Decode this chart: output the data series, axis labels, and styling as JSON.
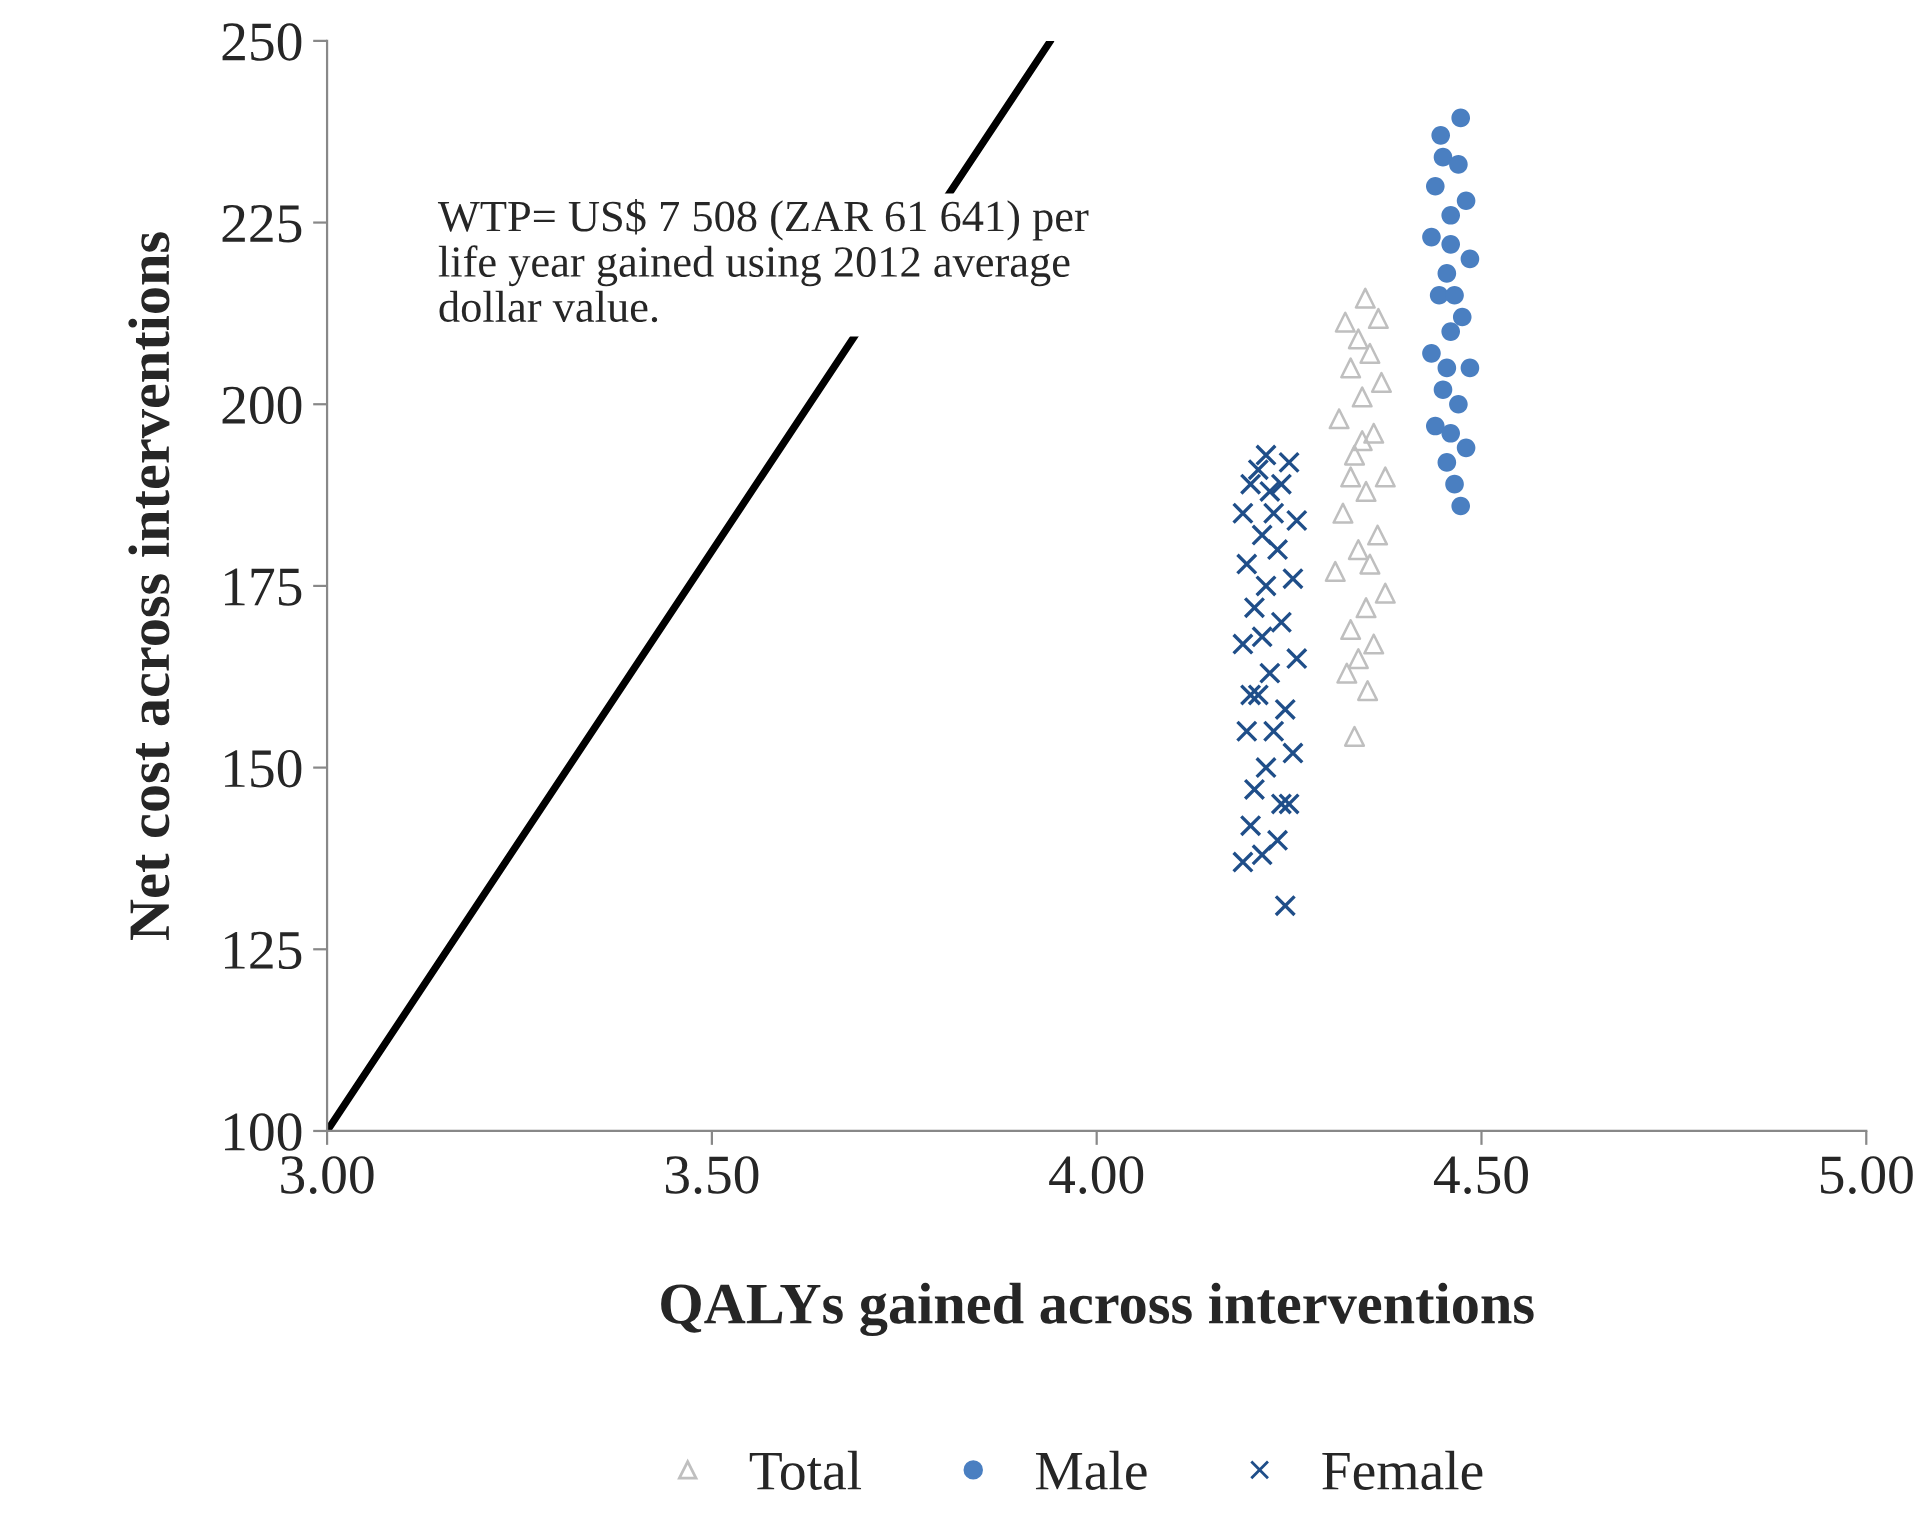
{
  "chart_data": {
    "type": "scatter",
    "xlabel": "QALYs gained across interventions",
    "ylabel": "Net cost across interventions",
    "annotations": [
      "WTP= US$ 7 508 (ZAR 61 641) per\nlife year gained using 2012 average\ndollar value."
    ],
    "xlim": [
      3.0,
      5.0
    ],
    "xticks": [
      {
        "value": 3.0,
        "label": "3.00"
      },
      {
        "value": 3.5,
        "label": "3.50"
      },
      {
        "value": 4.0,
        "label": "4.00"
      },
      {
        "value": 4.5,
        "label": "4.50"
      },
      {
        "value": 5.0,
        "label": "5.00"
      }
    ],
    "ylim": [
      100,
      250
    ],
    "yticks": [
      100,
      125,
      150,
      175,
      200,
      225,
      250
    ],
    "grid": false,
    "legend": "bottom",
    "series": [
      {
        "type": "line",
        "color": "#000000",
        "x": [
          3.0,
          3.94
        ],
        "values": [
          100,
          250
        ],
        "marker": "none",
        "line_style": "solid"
      },
      {
        "name": "Total",
        "color": "#bfbfbf",
        "marker": "triangle",
        "x": [
          4.349,
          4.323,
          4.366,
          4.34,
          4.355,
          4.33,
          4.37,
          4.345,
          4.315,
          4.36,
          4.335,
          4.375,
          4.35,
          4.32,
          4.365,
          4.34,
          4.31,
          4.375,
          4.35,
          4.33,
          4.36,
          4.34,
          4.325,
          4.352,
          4.335,
          4.345,
          4.355,
          4.33
        ],
        "values": [
          214.6,
          211.3,
          211.8,
          209,
          207,
          205,
          203,
          201,
          198,
          196,
          193,
          190,
          188,
          185,
          182,
          180,
          177,
          174,
          172,
          169,
          167,
          165,
          163,
          160.6,
          154.3,
          195,
          178,
          190
        ]
      },
      {
        "name": "Male",
        "color": "#4a7fc1",
        "marker": "circle",
        "x": [
          4.473,
          4.447,
          4.45,
          4.47,
          4.44,
          4.48,
          4.46,
          4.435,
          4.485,
          4.455,
          4.445,
          4.475,
          4.46,
          4.435,
          4.485,
          4.45,
          4.47,
          4.44,
          4.48,
          4.455,
          4.465,
          4.473,
          4.46,
          4.465,
          4.455,
          4.46
        ],
        "values": [
          239.4,
          237,
          234,
          233,
          230,
          228,
          226,
          223,
          220,
          218,
          215,
          212,
          210,
          207,
          205,
          202,
          200,
          197,
          194,
          192,
          189,
          186,
          222,
          215,
          205,
          196
        ]
      },
      {
        "name": "Female",
        "color": "#1f4e89",
        "marker": "cross",
        "x": [
          4.25,
          4.21,
          4.2,
          4.24,
          4.225,
          4.19,
          4.26,
          4.215,
          4.235,
          4.195,
          4.255,
          4.22,
          4.205,
          4.24,
          4.19,
          4.26,
          4.225,
          4.21,
          4.245,
          4.195,
          4.255,
          4.22,
          4.205,
          4.24,
          4.2,
          4.235,
          4.215,
          4.19,
          4.245,
          4.23,
          4.23,
          4.215,
          4.2,
          4.25,
          4.22
        ],
        "values": [
          192,
          191,
          189,
          189,
          188,
          185,
          184,
          182,
          180,
          178,
          176,
          175,
          172,
          170,
          167,
          165,
          163,
          160,
          158,
          155,
          152,
          150,
          147,
          145,
          142,
          140,
          138,
          137,
          131,
          185,
          155,
          168,
          160,
          145,
          193
        ]
      }
    ]
  }
}
